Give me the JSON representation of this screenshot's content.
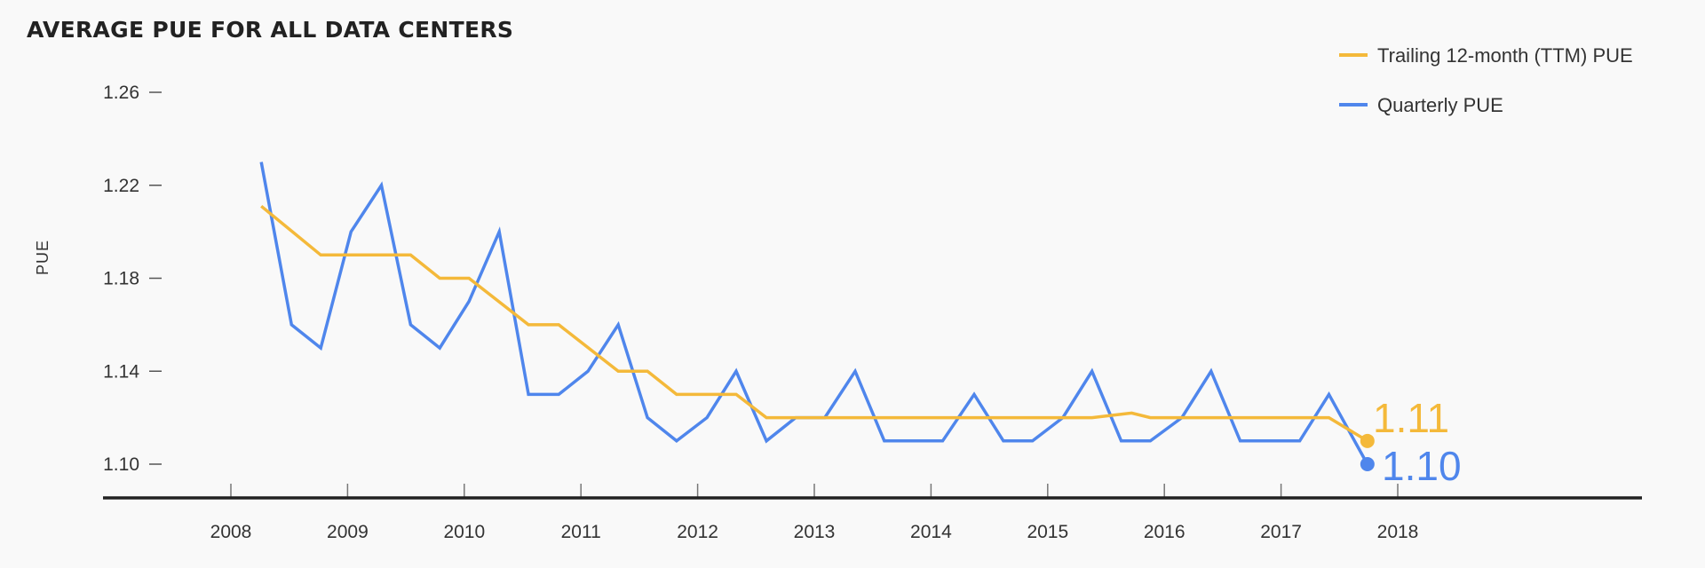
{
  "chart_data": {
    "type": "line",
    "title": "AVERAGE PUE FOR ALL DATA CENTERS",
    "xlabel": "",
    "ylabel": "PUE",
    "xlim": [
      2007.5,
      2020.2
    ],
    "ylim": [
      1.083,
      1.26
    ],
    "x_ticks": [
      "2008",
      "2009",
      "2010",
      "2011",
      "2012",
      "2013",
      "2014",
      "2015",
      "2016",
      "2017",
      "2018"
    ],
    "y_ticks": [
      "1.26",
      "1.22",
      "1.18",
      "1.14",
      "1.10"
    ],
    "grid": false,
    "legend_position": "top-right",
    "colors": {
      "ttm": "#F4B93A",
      "quarterly": "#4F86EC",
      "axis": "#222222"
    },
    "series": [
      {
        "name": "Trailing 12-month (TTM) PUE",
        "color": "#F4B93A",
        "end_label": "1.11",
        "points": [
          [
            2008.26,
            1.211
          ],
          [
            2008.77,
            1.19
          ],
          [
            2009.54,
            1.19
          ],
          [
            2009.79,
            1.18
          ],
          [
            2010.04,
            1.18
          ],
          [
            2010.55,
            1.16
          ],
          [
            2010.81,
            1.16
          ],
          [
            2011.32,
            1.14
          ],
          [
            2011.57,
            1.14
          ],
          [
            2011.82,
            1.13
          ],
          [
            2012.33,
            1.13
          ],
          [
            2012.59,
            1.12
          ],
          [
            2015.38,
            1.12
          ],
          [
            2015.72,
            1.122
          ],
          [
            2015.88,
            1.12
          ],
          [
            2017.41,
            1.12
          ],
          [
            2017.74,
            1.11
          ]
        ]
      },
      {
        "name": "Quarterly PUE",
        "color": "#4F86EC",
        "end_label": "1.10",
        "points": [
          [
            2008.26,
            1.23
          ],
          [
            2008.52,
            1.16
          ],
          [
            2008.77,
            1.15
          ],
          [
            2009.03,
            1.2
          ],
          [
            2009.29,
            1.22
          ],
          [
            2009.54,
            1.16
          ],
          [
            2009.79,
            1.15
          ],
          [
            2010.04,
            1.17
          ],
          [
            2010.3,
            1.2
          ],
          [
            2010.55,
            1.13
          ],
          [
            2010.81,
            1.13
          ],
          [
            2011.06,
            1.14
          ],
          [
            2011.32,
            1.16
          ],
          [
            2011.57,
            1.12
          ],
          [
            2011.82,
            1.11
          ],
          [
            2012.08,
            1.12
          ],
          [
            2012.33,
            1.14
          ],
          [
            2012.59,
            1.11
          ],
          [
            2012.84,
            1.12
          ],
          [
            2013.09,
            1.12
          ],
          [
            2013.35,
            1.14
          ],
          [
            2013.6,
            1.11
          ],
          [
            2013.85,
            1.11
          ],
          [
            2014.1,
            1.11
          ],
          [
            2014.37,
            1.13
          ],
          [
            2014.62,
            1.11
          ],
          [
            2014.87,
            1.11
          ],
          [
            2015.13,
            1.12
          ],
          [
            2015.38,
            1.14
          ],
          [
            2015.63,
            1.11
          ],
          [
            2015.88,
            1.11
          ],
          [
            2016.15,
            1.12
          ],
          [
            2016.4,
            1.14
          ],
          [
            2016.65,
            1.11
          ],
          [
            2016.9,
            1.11
          ],
          [
            2017.16,
            1.11
          ],
          [
            2017.41,
            1.13
          ],
          [
            2017.74,
            1.1
          ]
        ]
      }
    ]
  }
}
